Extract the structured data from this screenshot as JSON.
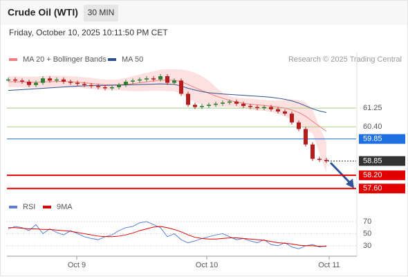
{
  "chart_data": {
    "type": "candlestick",
    "title": "Crude Oil (WTI)",
    "interval": "30 MIN",
    "subtitle": "Friday, October 10, 2025 10:11:50 PM CET",
    "credit": "Research © 2025 Trading Central",
    "closes": [
      62.55,
      62.5,
      62.45,
      62.3,
      62.4,
      62.6,
      62.5,
      62.55,
      62.45,
      62.4,
      62.35,
      62.3,
      62.25,
      62.2,
      62.15,
      62.2,
      62.3,
      62.45,
      62.5,
      62.55,
      62.6,
      62.55,
      62.7,
      62.4,
      62.5,
      61.9,
      61.4,
      61.3,
      61.35,
      61.4,
      61.45,
      61.5,
      61.55,
      61.45,
      61.35,
      61.3,
      61.25,
      61.3,
      61.2,
      61.1,
      61.0,
      60.6,
      60.3,
      59.6,
      58.95,
      58.9,
      58.85
    ],
    "up_color": "#2e7d32",
    "down_color": "#b71c1c",
    "series": [
      {
        "name": "MA 20 + Bollinger Bands",
        "color": "#f08080",
        "band_color": "#fde0e0",
        "values": [
          62.45,
          62.45,
          62.44,
          62.43,
          62.43,
          62.44,
          62.45,
          62.46,
          62.46,
          62.45,
          62.43,
          62.4,
          62.37,
          62.34,
          62.31,
          62.3,
          62.31,
          62.33,
          62.36,
          62.4,
          62.44,
          62.48,
          62.52,
          62.52,
          62.52,
          62.45,
          62.32,
          62.18,
          62.05,
          61.92,
          61.8,
          61.7,
          61.6,
          61.52,
          61.47,
          61.43,
          61.4,
          61.37,
          61.34,
          61.3,
          61.25,
          61.17,
          61.05,
          60.88,
          60.65,
          60.42,
          60.2
        ],
        "upper": [
          62.7,
          62.7,
          62.69,
          62.68,
          62.68,
          62.7,
          62.72,
          62.72,
          62.71,
          62.7,
          62.68,
          62.65,
          62.62,
          62.58,
          62.55,
          62.54,
          62.56,
          62.62,
          62.7,
          62.78,
          62.85,
          62.92,
          63.0,
          63.02,
          63.02,
          63.0,
          62.95,
          62.85,
          62.7,
          62.5,
          62.2,
          61.95,
          61.8,
          61.72,
          61.7,
          61.68,
          61.65,
          61.62,
          61.6,
          61.6,
          61.62,
          61.65,
          61.62,
          61.5,
          61.2,
          60.4,
          59.7
        ],
        "lower": [
          62.2,
          62.2,
          62.19,
          62.18,
          62.18,
          62.18,
          62.18,
          62.2,
          62.21,
          62.2,
          62.18,
          62.15,
          62.12,
          62.1,
          62.07,
          62.06,
          62.06,
          62.04,
          62.02,
          62.02,
          62.03,
          62.04,
          62.04,
          62.02,
          62.02,
          61.9,
          61.69,
          61.51,
          61.4,
          61.34,
          61.3,
          61.3,
          61.3,
          61.3,
          61.24,
          61.18,
          61.15,
          61.12,
          61.08,
          61.0,
          60.88,
          60.69,
          60.48,
          60.26,
          60.1,
          59.2,
          58.3
        ]
      },
      {
        "name": "MA 50",
        "color": "#2f4f8f",
        "values": [
          62.05,
          62.07,
          62.09,
          62.11,
          62.13,
          62.15,
          62.17,
          62.19,
          62.21,
          62.23,
          62.25,
          62.26,
          62.27,
          62.28,
          62.28,
          62.29,
          62.3,
          62.3,
          62.31,
          62.32,
          62.33,
          62.34,
          62.35,
          62.34,
          62.33,
          62.25,
          62.15,
          62.07,
          62.0,
          61.95,
          61.92,
          61.89,
          61.87,
          61.85,
          61.83,
          61.81,
          61.79,
          61.77,
          61.74,
          61.7,
          61.65,
          61.58,
          61.48,
          61.35,
          61.22,
          61.12,
          61.05
        ]
      }
    ],
    "levels": [
      {
        "value": 61.25,
        "label": "61.25",
        "color": "#a5cf82",
        "style": "line"
      },
      {
        "value": 60.4,
        "label": "60.40",
        "color": "#a5cf82",
        "style": "line"
      },
      {
        "value": 59.85,
        "label": "59.85",
        "color": "#1e6fe0",
        "style": "box"
      },
      {
        "value": 58.85,
        "label": "58.85",
        "color": "#333333",
        "style": "dotted"
      },
      {
        "value": 58.2,
        "label": "58.20",
        "color": "#e00000",
        "style": "box"
      },
      {
        "value": 57.6,
        "label": "57.60",
        "color": "#e00000",
        "style": "box"
      }
    ],
    "ylim": [
      57.2,
      63.8
    ],
    "xlim": [
      -0.2,
      50.3
    ],
    "xticks": [
      {
        "value": 9.9,
        "label": "Oct 9"
      },
      {
        "value": 28.7,
        "label": "Oct 10"
      },
      {
        "value": 46.4,
        "label": "Oct 11"
      }
    ],
    "rsi": {
      "series": [
        {
          "name": "RSI",
          "color": "#5b7fd6",
          "values": [
            58,
            62,
            60,
            55,
            65,
            50,
            58,
            52,
            48,
            55,
            50,
            45,
            42,
            40,
            45,
            48,
            55,
            60,
            62,
            68,
            70,
            65,
            60,
            45,
            50,
            40,
            35,
            38,
            42,
            45,
            48,
            50,
            45,
            40,
            42,
            38,
            35,
            40,
            32,
            30,
            35,
            28,
            25,
            30,
            32,
            28,
            30
          ]
        },
        {
          "name": "9MA",
          "color": "#e00000",
          "values": [
            60,
            60,
            59,
            58,
            58,
            57,
            57,
            56,
            55,
            54,
            52,
            50,
            48,
            46,
            45,
            45,
            46,
            48,
            51,
            55,
            58,
            61,
            62,
            60,
            57,
            53,
            48,
            44,
            42,
            41,
            41,
            42,
            43,
            43,
            42,
            41,
            40,
            39,
            37,
            35,
            34,
            33,
            31,
            30,
            30,
            29,
            29
          ]
        }
      ],
      "ylim": [
        15,
        78
      ],
      "yticks": [
        30,
        50,
        70
      ]
    }
  }
}
